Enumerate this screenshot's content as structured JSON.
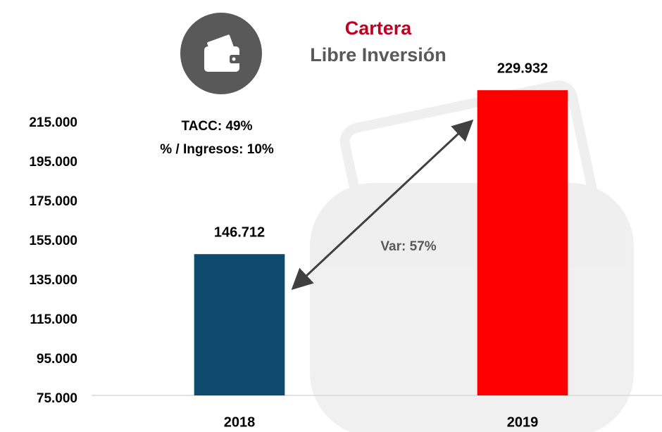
{
  "chart_data": {
    "type": "bar",
    "title": "Cartera",
    "subtitle": "Libre Inversión",
    "categories": [
      "2018",
      "2019"
    ],
    "values": [
      146712,
      229932
    ],
    "value_labels": [
      "146.712",
      "229.932"
    ],
    "colors": [
      "#0e4a6b",
      "#ff0000"
    ],
    "ylim": [
      75000,
      235000
    ],
    "yticks": [
      {
        "value": 75000,
        "label": "75.000"
      },
      {
        "value": 95000,
        "label": "95.000"
      },
      {
        "value": 115000,
        "label": "115.000"
      },
      {
        "value": 135000,
        "label": "135.000"
      },
      {
        "value": 155000,
        "label": "155.000"
      },
      {
        "value": 175000,
        "label": "175.000"
      },
      {
        "value": 195000,
        "label": "195.000"
      },
      {
        "value": 215000,
        "label": "215.000"
      }
    ],
    "grid": false,
    "annotations": [
      "TACC: 49%",
      "% / Ingresos: 10%",
      "Var: 57%"
    ]
  }
}
